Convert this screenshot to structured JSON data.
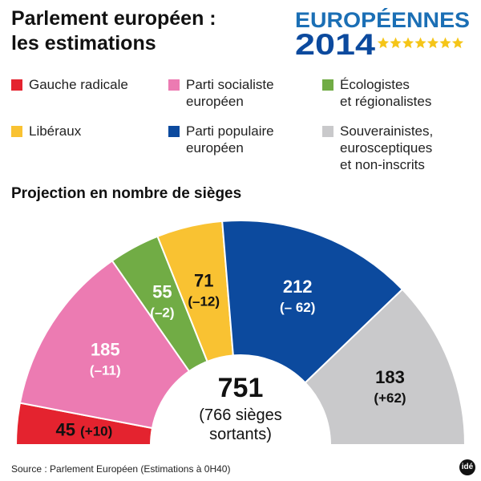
{
  "header": {
    "title": "Parlement européen :\nles estimations",
    "logo_line1": "EUROPÉENNES",
    "logo_line2": "2014"
  },
  "legend": [
    {
      "label": "Gauche radicale",
      "color": "#e4232f"
    },
    {
      "label": "Parti socialiste\neuropéen",
      "color": "#ec7bb2"
    },
    {
      "label": "Écologistes\net régionalistes",
      "color": "#71ac45"
    },
    {
      "label": "Libéraux",
      "color": "#f9c232"
    },
    {
      "label": "Parti populaire\neuropéen",
      "color": "#0c4a9e"
    },
    {
      "label": "Souverainistes,\neurosceptiques\net non-inscrits",
      "color": "#c9c9cb"
    }
  ],
  "chart_data": {
    "type": "pie",
    "subtitle": "Projection en nombre de sièges",
    "total": {
      "value": "751",
      "label": "(766 sièges\nsortants)"
    },
    "series": [
      {
        "name": "Gauche radicale",
        "value": 45,
        "change": "(+10)",
        "color": "#e4232f"
      },
      {
        "name": "Parti socialiste européen",
        "value": 185,
        "change": "(–11)",
        "color": "#ec7bb2"
      },
      {
        "name": "Écologistes et régionalistes",
        "value": 55,
        "change": "(–2)",
        "color": "#71ac45"
      },
      {
        "name": "Libéraux",
        "value": 71,
        "change": "(–12)",
        "color": "#f9c232"
      },
      {
        "name": "Parti populaire européen",
        "value": 212,
        "change": "(– 62)",
        "color": "#0c4a9e"
      },
      {
        "name": "Souverainistes, eurosceptiques et non-inscrits",
        "value": 183,
        "change": "(+62)",
        "color": "#c9c9cb"
      }
    ]
  },
  "footer": {
    "source": "Source : Parlement Européen (Estimations à 0H40)",
    "badge": "idé"
  }
}
